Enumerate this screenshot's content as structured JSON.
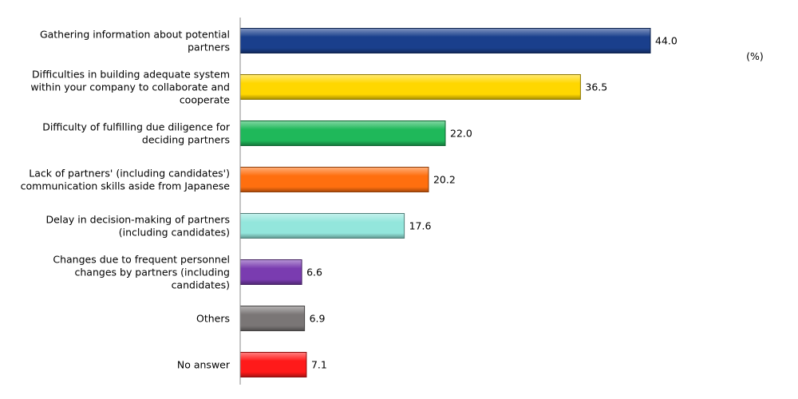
{
  "chart_data": {
    "type": "bar",
    "orientation": "horizontal",
    "unit_label": "(%)",
    "categories": [
      [
        "Gathering information about potential",
        "partners"
      ],
      [
        "Difficulties in building adequate system",
        "within your company to collaborate and",
        "cooperate"
      ],
      [
        "Difficulty of fulfilling  due diligence for",
        "deciding partners"
      ],
      [
        "Lack of partners' (including candidates')",
        "communication skills aside from Japanese"
      ],
      [
        "Delay in decision-making of partners",
        "(including candidates)"
      ],
      [
        "Changes due to frequent personnel",
        "changes by partners (including",
        "candidates)"
      ],
      [
        "Others"
      ],
      [
        "No answer"
      ]
    ],
    "values": [
      44.0,
      36.5,
      22.0,
      20.2,
      17.6,
      6.6,
      6.9,
      7.1
    ],
    "value_labels": [
      "44.0",
      "36.5",
      "22.0",
      "20.2",
      "17.6",
      "6.6",
      "6.9",
      "7.1"
    ],
    "colors": [
      "#1a3f8c",
      "#ffd700",
      "#1fb85a",
      "#ff6f0f",
      "#93e6dc",
      "#7a3cb0",
      "#7a7676",
      "#ff1a1a"
    ],
    "xlim": [
      0,
      50
    ],
    "grid": false,
    "legend": false
  }
}
